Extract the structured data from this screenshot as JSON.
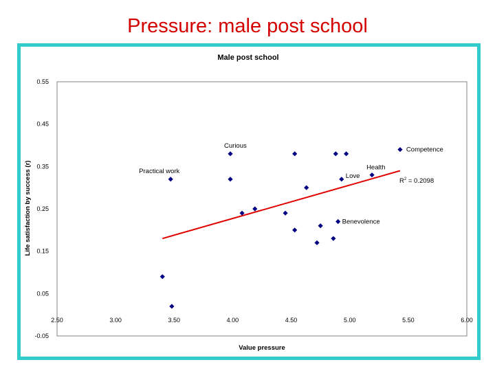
{
  "slide": {
    "title": "Pressure: male post school"
  },
  "colors": {
    "frame": "#33cccc",
    "title": "#d40000",
    "points": "#000080",
    "trendline": "#e00000"
  },
  "chart_data": {
    "type": "scatter",
    "title": "Male post school",
    "xlabel": "Value pressure",
    "ylabel": "Life satisfaction by success (r)",
    "xlim": [
      2.5,
      6.0
    ],
    "ylim": [
      -0.05,
      0.55
    ],
    "x_ticks": [
      "2.50",
      "3.00",
      "3.50",
      "4.00",
      "4.50",
      "5.00",
      "5.50",
      "6.00"
    ],
    "y_ticks": [
      "0.55",
      "0.45",
      "0.35",
      "0.25",
      "0.15",
      "0.05",
      "-0.05"
    ],
    "grid": false,
    "points": [
      {
        "x": 3.47,
        "y": 0.32,
        "label": "Practical work"
      },
      {
        "x": 3.98,
        "y": 0.38,
        "label": "Curious"
      },
      {
        "x": 3.98,
        "y": 0.32,
        "label": ""
      },
      {
        "x": 4.08,
        "y": 0.24,
        "label": ""
      },
      {
        "x": 4.19,
        "y": 0.25,
        "label": ""
      },
      {
        "x": 4.45,
        "y": 0.24,
        "label": ""
      },
      {
        "x": 4.53,
        "y": 0.38,
        "label": ""
      },
      {
        "x": 4.53,
        "y": 0.2,
        "label": ""
      },
      {
        "x": 4.63,
        "y": 0.3,
        "label": ""
      },
      {
        "x": 4.72,
        "y": 0.17,
        "label": ""
      },
      {
        "x": 4.75,
        "y": 0.21,
        "label": ""
      },
      {
        "x": 4.86,
        "y": 0.18,
        "label": ""
      },
      {
        "x": 4.88,
        "y": 0.38,
        "label": ""
      },
      {
        "x": 4.9,
        "y": 0.22,
        "label": "Benevolence"
      },
      {
        "x": 4.93,
        "y": 0.32,
        "label": "Love"
      },
      {
        "x": 4.97,
        "y": 0.38,
        "label": ""
      },
      {
        "x": 5.19,
        "y": 0.33,
        "label": "Health"
      },
      {
        "x": 5.43,
        "y": 0.39,
        "label": "Competence"
      },
      {
        "x": 3.4,
        "y": 0.09,
        "label": ""
      },
      {
        "x": 3.48,
        "y": 0.02,
        "label": ""
      }
    ],
    "trendline": {
      "x": [
        3.4,
        5.43
      ],
      "y": [
        0.18,
        0.34
      ]
    },
    "annotation": {
      "r_squared": "0.2098",
      "r_squared_label": "R",
      "superscript": "2",
      "equals": " = "
    }
  }
}
